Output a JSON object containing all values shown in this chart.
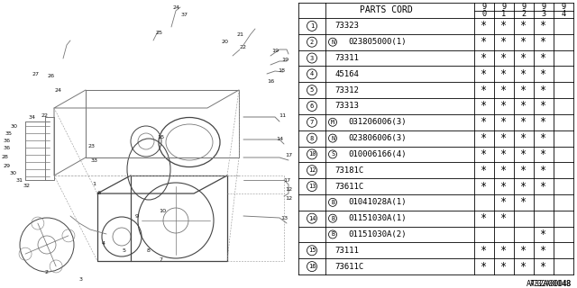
{
  "diagram_ref": "A732A00048",
  "rows": [
    {
      "num": "1",
      "circled": true,
      "prefix": "",
      "prefix_circled": false,
      "part": "73323",
      "stars": [
        true,
        true,
        true,
        true,
        false
      ]
    },
    {
      "num": "2",
      "circled": true,
      "prefix": "N",
      "prefix_circled": true,
      "part": "023805000(1)",
      "stars": [
        true,
        true,
        true,
        true,
        false
      ]
    },
    {
      "num": "3",
      "circled": true,
      "prefix": "",
      "prefix_circled": false,
      "part": "73311",
      "stars": [
        true,
        true,
        true,
        true,
        false
      ]
    },
    {
      "num": "4",
      "circled": true,
      "prefix": "",
      "prefix_circled": false,
      "part": "45164",
      "stars": [
        true,
        true,
        true,
        true,
        false
      ]
    },
    {
      "num": "5",
      "circled": true,
      "prefix": "",
      "prefix_circled": false,
      "part": "73312",
      "stars": [
        true,
        true,
        true,
        true,
        false
      ]
    },
    {
      "num": "6",
      "circled": true,
      "prefix": "",
      "prefix_circled": false,
      "part": "73313",
      "stars": [
        true,
        true,
        true,
        true,
        false
      ]
    },
    {
      "num": "7",
      "circled": true,
      "prefix": "M",
      "prefix_circled": true,
      "part": "031206006(3)",
      "stars": [
        true,
        true,
        true,
        true,
        false
      ]
    },
    {
      "num": "8",
      "circled": true,
      "prefix": "N",
      "prefix_circled": true,
      "part": "023806006(3)",
      "stars": [
        true,
        true,
        true,
        true,
        false
      ]
    },
    {
      "num": "10",
      "circled": true,
      "prefix": "S",
      "prefix_circled": true,
      "part": "010006166(4)",
      "stars": [
        true,
        true,
        true,
        true,
        false
      ]
    },
    {
      "num": "12",
      "circled": true,
      "prefix": "",
      "prefix_circled": false,
      "part": "73181C",
      "stars": [
        true,
        true,
        true,
        true,
        false
      ]
    },
    {
      "num": "13",
      "circled": true,
      "prefix": "",
      "prefix_circled": false,
      "part": "73611C",
      "stars": [
        true,
        true,
        true,
        true,
        false
      ]
    },
    {
      "num": "",
      "circled": false,
      "prefix": "B",
      "prefix_circled": true,
      "part": "01041028A(1)",
      "stars": [
        false,
        true,
        true,
        false,
        false
      ]
    },
    {
      "num": "14",
      "circled": true,
      "prefix": "B",
      "prefix_circled": true,
      "part": "01151030A(1)",
      "stars": [
        true,
        true,
        false,
        false,
        false
      ]
    },
    {
      "num": "",
      "circled": false,
      "prefix": "B",
      "prefix_circled": true,
      "part": "01151030A(2)",
      "stars": [
        false,
        false,
        false,
        true,
        false
      ]
    },
    {
      "num": "15",
      "circled": true,
      "prefix": "",
      "prefix_circled": false,
      "part": "73111",
      "stars": [
        true,
        true,
        true,
        true,
        false
      ]
    },
    {
      "num": "16",
      "circled": true,
      "prefix": "",
      "prefix_circled": false,
      "part": "73611C",
      "stars": [
        true,
        true,
        true,
        true,
        false
      ]
    }
  ],
  "bg_color": "#ffffff"
}
